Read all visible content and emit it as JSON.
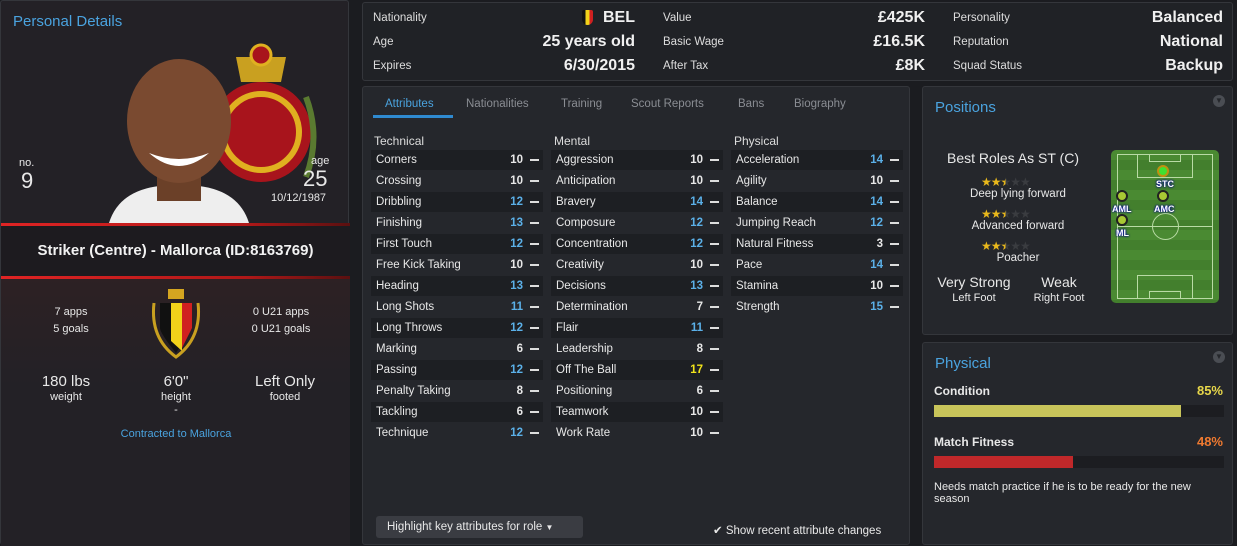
{
  "personal": {
    "title": "Personal Details",
    "no_label": "no.",
    "number": "9",
    "age_label": "age",
    "age": "25",
    "dob": "10/12/1987",
    "banner": "Striker (Centre) - Mallorca (ID:8163769)",
    "apps": "7 apps",
    "goals": "5 goals",
    "u21_apps": "0 U21 apps",
    "u21_goals": "0 U21 goals",
    "weight": "180 lbs",
    "weight_label": "weight",
    "height": "6'0\"",
    "height_label": "height",
    "foot": "Left Only",
    "foot_label": "footed",
    "dash": "-",
    "contract": "Contracted to Mallorca"
  },
  "info": [
    {
      "label": "Nationality",
      "value": "BEL"
    },
    {
      "label": "Age",
      "value": "25 years old"
    },
    {
      "label": "Expires",
      "value": "6/30/2015"
    },
    {
      "label": "Value",
      "value": "£425K"
    },
    {
      "label": "Basic Wage",
      "value": "£16.5K"
    },
    {
      "label": "After Tax",
      "value": "£8K"
    },
    {
      "label": "Personality",
      "value": "Balanced"
    },
    {
      "label": "Reputation",
      "value": "National"
    },
    {
      "label": "Squad Status",
      "value": "Backup"
    }
  ],
  "tabs": [
    "Attributes",
    "Nationalities",
    "Training",
    "Scout Reports",
    "Bans",
    "Biography"
  ],
  "attributes": {
    "technical": {
      "title": "Technical",
      "items": [
        [
          "Corners",
          10
        ],
        [
          "Crossing",
          10
        ],
        [
          "Dribbling",
          12
        ],
        [
          "Finishing",
          13
        ],
        [
          "First Touch",
          12
        ],
        [
          "Free Kick Taking",
          10
        ],
        [
          "Heading",
          13
        ],
        [
          "Long Shots",
          11
        ],
        [
          "Long Throws",
          12
        ],
        [
          "Marking",
          6
        ],
        [
          "Passing",
          12
        ],
        [
          "Penalty Taking",
          8
        ],
        [
          "Tackling",
          6
        ],
        [
          "Technique",
          12
        ]
      ]
    },
    "mental": {
      "title": "Mental",
      "items": [
        [
          "Aggression",
          10
        ],
        [
          "Anticipation",
          10
        ],
        [
          "Bravery",
          14
        ],
        [
          "Composure",
          12
        ],
        [
          "Concentration",
          12
        ],
        [
          "Creativity",
          10
        ],
        [
          "Decisions",
          13
        ],
        [
          "Determination",
          7
        ],
        [
          "Flair",
          11
        ],
        [
          "Leadership",
          8
        ],
        [
          "Off The Ball",
          17
        ],
        [
          "Positioning",
          6
        ],
        [
          "Teamwork",
          10
        ],
        [
          "Work Rate",
          10
        ]
      ]
    },
    "physical": {
      "title": "Physical",
      "items": [
        [
          "Acceleration",
          14
        ],
        [
          "Agility",
          10
        ],
        [
          "Balance",
          14
        ],
        [
          "Jumping Reach",
          12
        ],
        [
          "Natural Fitness",
          3
        ],
        [
          "Pace",
          14
        ],
        [
          "Stamina",
          10
        ],
        [
          "Strength",
          15
        ]
      ]
    }
  },
  "highlight_button": "Highlight key attributes for role",
  "show_changes": "Show recent attribute changes",
  "positions": {
    "title": "Positions",
    "best_roles": "Best Roles As ST (C)",
    "roles": [
      {
        "name": "Deep lying forward",
        "stars": 2.5
      },
      {
        "name": "Advanced forward",
        "stars": 2.5
      },
      {
        "name": "Poacher",
        "stars": 2.5
      }
    ],
    "left_foot": "Very Strong",
    "left_foot_label": "Left Foot",
    "right_foot": "Weak",
    "right_foot_label": "Right Foot",
    "pitch_positions": [
      "STC",
      "AMC",
      "AML",
      "ML"
    ]
  },
  "physical": {
    "title": "Physical",
    "condition_label": "Condition",
    "condition": "85%",
    "condition_value": 85,
    "condition_color": "#c8c45a",
    "fitness_label": "Match Fitness",
    "fitness": "48%",
    "fitness_value": 48,
    "fitness_color": "#c0282a",
    "note": "Needs match practice if he is to be ready for the new season"
  }
}
